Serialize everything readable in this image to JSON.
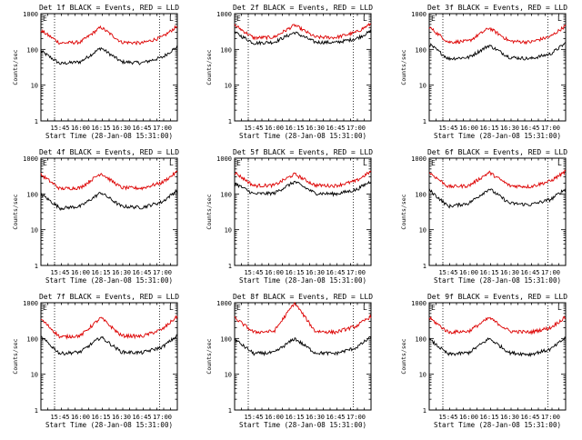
{
  "chart_data": {
    "type": "line",
    "layout": "3x3 grid of small multiples",
    "shared": {
      "ylabel": "Counts/sec",
      "xlabel": "Start Time (28-Jan-08 15:31:00)",
      "y_scale": "log",
      "ylim": [
        1,
        1000
      ],
      "y_ticks": [
        "1",
        "10",
        "100",
        "1000"
      ],
      "xlim": [
        "15:31",
        "17:11"
      ],
      "x_ticks": [
        "15:45",
        "16:00",
        "16:15",
        "16:30",
        "16:45",
        "17:00"
      ],
      "vlines": [
        "15:41",
        "16:58"
      ],
      "corner_marks": [
        "E",
        "L"
      ],
      "series_colors": {
        "events": "#000000",
        "lld": "#dd0000"
      },
      "series_names": {
        "events": "Events",
        "lld": "LLD"
      },
      "grid": false,
      "legend": "in title"
    },
    "panels": [
      {
        "title": "Det 1f BLACK = Events, RED = LLD",
        "series": [
          {
            "name": "Events",
            "x": [
              "15:31",
              "15:45",
              "16:00",
              "16:15",
              "16:30",
              "16:45",
              "17:00",
              "17:11"
            ],
            "values": [
              90,
              40,
              45,
              110,
              45,
              42,
              60,
              120
            ]
          },
          {
            "name": "LLD",
            "x": [
              "15:31",
              "15:45",
              "16:00",
              "16:15",
              "16:30",
              "16:45",
              "17:00",
              "17:11"
            ],
            "values": [
              340,
              150,
              160,
              420,
              160,
              150,
              220,
              450
            ]
          }
        ]
      },
      {
        "title": "Det 2f BLACK = Events, RED = LLD",
        "series": [
          {
            "name": "Events",
            "x": [
              "15:31",
              "15:45",
              "16:00",
              "16:15",
              "16:30",
              "16:45",
              "17:00",
              "17:11"
            ],
            "values": [
              300,
              150,
              160,
              300,
              160,
              155,
              200,
              320
            ]
          },
          {
            "name": "LLD",
            "x": [
              "15:31",
              "15:45",
              "16:00",
              "16:15",
              "16:30",
              "16:45",
              "17:00",
              "17:11"
            ],
            "values": [
              480,
              210,
              220,
              480,
              220,
              215,
              300,
              520
            ]
          }
        ]
      },
      {
        "title": "Det 3f BLACK = Events, RED = LLD",
        "series": [
          {
            "name": "Events",
            "x": [
              "15:31",
              "15:45",
              "16:00",
              "16:15",
              "16:30",
              "16:45",
              "17:00",
              "17:11"
            ],
            "values": [
              140,
              55,
              60,
              130,
              60,
              55,
              75,
              150
            ]
          },
          {
            "name": "LLD",
            "x": [
              "15:31",
              "15:45",
              "16:00",
              "16:15",
              "16:30",
              "16:45",
              "17:00",
              "17:11"
            ],
            "values": [
              420,
              160,
              170,
              400,
              170,
              160,
              230,
              460
            ]
          }
        ]
      },
      {
        "title": "Det 4f BLACK = Events, RED = LLD",
        "series": [
          {
            "name": "Events",
            "x": [
              "15:31",
              "15:45",
              "16:00",
              "16:15",
              "16:30",
              "16:45",
              "17:00",
              "17:11"
            ],
            "values": [
              100,
              40,
              45,
              110,
              45,
              42,
              60,
              130
            ]
          },
          {
            "name": "LLD",
            "x": [
              "15:31",
              "15:45",
              "16:00",
              "16:15",
              "16:30",
              "16:45",
              "17:00",
              "17:11"
            ],
            "values": [
              350,
              140,
              150,
              380,
              150,
              145,
              210,
              420
            ]
          }
        ]
      },
      {
        "title": "Det 5f BLACK = Events, RED = LLD",
        "series": [
          {
            "name": "Events",
            "x": [
              "15:31",
              "15:45",
              "16:00",
              "16:15",
              "16:30",
              "16:45",
              "17:00",
              "17:11"
            ],
            "values": [
              200,
              100,
              105,
              220,
              105,
              100,
              130,
              230
            ]
          },
          {
            "name": "LLD",
            "x": [
              "15:31",
              "15:45",
              "16:00",
              "16:15",
              "16:30",
              "16:45",
              "17:00",
              "17:11"
            ],
            "values": [
              400,
              170,
              175,
              360,
              175,
              170,
              230,
              430
            ]
          }
        ]
      },
      {
        "title": "Det 6f BLACK = Events, RED = LLD",
        "series": [
          {
            "name": "Events",
            "x": [
              "15:31",
              "15:45",
              "16:00",
              "16:15",
              "16:30",
              "16:45",
              "17:00",
              "17:11"
            ],
            "values": [
              130,
              45,
              55,
              140,
              55,
              50,
              70,
              140
            ]
          },
          {
            "name": "LLD",
            "x": [
              "15:31",
              "15:45",
              "16:00",
              "16:15",
              "16:30",
              "16:45",
              "17:00",
              "17:11"
            ],
            "values": [
              400,
              160,
              170,
              400,
              170,
              160,
              230,
              430
            ]
          }
        ]
      },
      {
        "title": "Det 7f BLACK = Events, RED = LLD",
        "series": [
          {
            "name": "Events",
            "x": [
              "15:31",
              "15:45",
              "16:00",
              "16:15",
              "16:30",
              "16:45",
              "17:00",
              "17:11"
            ],
            "values": [
              110,
              38,
              42,
              110,
              42,
              40,
              58,
              120
            ]
          },
          {
            "name": "LLD",
            "x": [
              "15:31",
              "15:45",
              "16:00",
              "16:15",
              "16:30",
              "16:45",
              "17:00",
              "17:11"
            ],
            "values": [
              350,
              110,
              120,
              380,
              120,
              115,
              180,
              420
            ]
          }
        ]
      },
      {
        "title": "Det 8f BLACK = Events, RED = LLD",
        "series": [
          {
            "name": "Events",
            "x": [
              "15:31",
              "15:45",
              "16:00",
              "16:15",
              "16:30",
              "16:45",
              "17:00",
              "17:11"
            ],
            "values": [
              95,
              38,
              40,
              100,
              40,
              38,
              55,
              110
            ]
          },
          {
            "name": "LLD",
            "x": [
              "15:31",
              "15:45",
              "16:00",
              "16:15",
              "16:30",
              "16:45",
              "17:00",
              "17:11"
            ],
            "values": [
              380,
              150,
              160,
              1000,
              160,
              150,
              220,
              420
            ]
          }
        ]
      },
      {
        "title": "Det 9f BLACK = Events, RED = LLD",
        "series": [
          {
            "name": "Events",
            "x": [
              "15:31",
              "15:45",
              "16:00",
              "16:15",
              "16:30",
              "16:45",
              "17:00",
              "17:11"
            ],
            "values": [
              95,
              36,
              40,
              100,
              40,
              36,
              50,
              105
            ]
          },
          {
            "name": "LLD",
            "x": [
              "15:31",
              "15:45",
              "16:00",
              "16:15",
              "16:30",
              "16:45",
              "17:00",
              "17:11"
            ],
            "values": [
              380,
              150,
              160,
              380,
              160,
              150,
              200,
              400
            ]
          }
        ]
      }
    ]
  }
}
